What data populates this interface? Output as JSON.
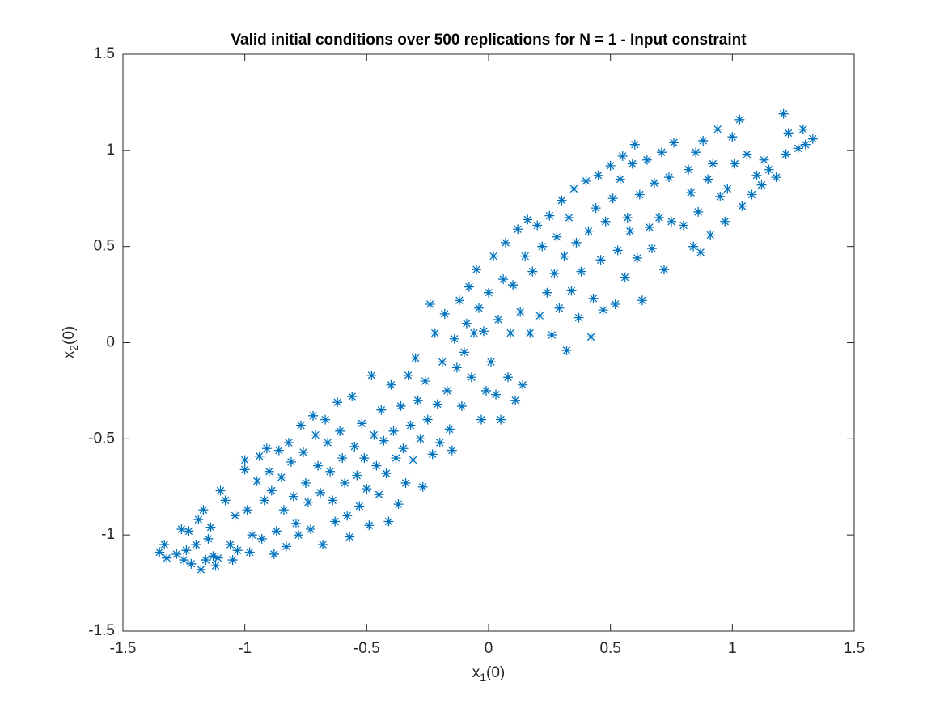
{
  "chart_data": {
    "type": "scatter",
    "title": "Valid initial conditions over 500 replications for N = 1 - Input constraint",
    "xlabel": [
      "x",
      "1",
      "(0)"
    ],
    "ylabel": [
      "x",
      "2",
      "(0)"
    ],
    "xlim": [
      -1.5,
      1.5
    ],
    "ylim": [
      -1.5,
      1.5
    ],
    "xticks": [
      -1.5,
      -1,
      -0.5,
      0,
      0.5,
      1,
      1.5
    ],
    "yticks": [
      -1.5,
      -1,
      -0.5,
      0,
      0.5,
      1,
      1.5
    ],
    "grid": false,
    "color": "#0072bd",
    "marker": "*",
    "x": [
      -1.35,
      -1.33,
      -1.32,
      -1.28,
      -1.26,
      -1.25,
      -1.24,
      -1.23,
      -1.22,
      -1.2,
      -1.19,
      -1.18,
      -1.17,
      -1.16,
      -1.15,
      -1.14,
      -1.13,
      -1.12,
      -1.11,
      -1.1,
      -1.08,
      -1.06,
      -1.05,
      -1.04,
      -1.03,
      -1.0,
      -1.0,
      -0.99,
      -0.98,
      -0.97,
      -0.95,
      -0.94,
      -0.93,
      -0.92,
      -0.91,
      -0.9,
      -0.89,
      -0.88,
      -0.87,
      -0.86,
      -0.85,
      -0.84,
      -0.83,
      -0.82,
      -0.81,
      -0.8,
      -0.79,
      -0.78,
      -0.77,
      -0.76,
      -0.75,
      -0.74,
      -0.73,
      -0.72,
      -0.71,
      -0.7,
      -0.69,
      -0.68,
      -0.67,
      -0.66,
      -0.65,
      -0.64,
      -0.63,
      -0.62,
      -0.61,
      -0.6,
      -0.59,
      -0.58,
      -0.57,
      -0.56,
      -0.55,
      -0.54,
      -0.53,
      -0.52,
      -0.51,
      -0.5,
      -0.49,
      -0.48,
      -0.47,
      -0.46,
      -0.45,
      -0.44,
      -0.43,
      -0.42,
      -0.41,
      -0.4,
      -0.39,
      -0.38,
      -0.37,
      -0.36,
      -0.35,
      -0.34,
      -0.33,
      -0.32,
      -0.31,
      -0.3,
      -0.29,
      -0.28,
      -0.27,
      -0.26,
      -0.25,
      -0.24,
      -0.23,
      -0.22,
      -0.21,
      -0.2,
      -0.19,
      -0.18,
      -0.17,
      -0.16,
      -0.15,
      -0.14,
      -0.13,
      -0.12,
      -0.11,
      -0.1,
      -0.09,
      -0.08,
      -0.07,
      -0.06,
      -0.05,
      -0.04,
      -0.03,
      -0.02,
      -0.01,
      0.0,
      0.01,
      0.02,
      0.03,
      0.04,
      0.05,
      0.06,
      0.07,
      0.08,
      0.09,
      0.1,
      0.11,
      0.12,
      0.13,
      0.14,
      0.15,
      0.16,
      0.17,
      0.18,
      0.2,
      0.21,
      0.22,
      0.24,
      0.25,
      0.26,
      0.27,
      0.28,
      0.29,
      0.3,
      0.31,
      0.32,
      0.33,
      0.34,
      0.35,
      0.36,
      0.37,
      0.38,
      0.4,
      0.41,
      0.42,
      0.43,
      0.44,
      0.45,
      0.46,
      0.47,
      0.48,
      0.5,
      0.51,
      0.52,
      0.53,
      0.54,
      0.55,
      0.56,
      0.57,
      0.58,
      0.59,
      0.6,
      0.61,
      0.62,
      0.63,
      0.65,
      0.66,
      0.67,
      0.68,
      0.7,
      0.71,
      0.72,
      0.74,
      0.75,
      0.76,
      0.8,
      0.82,
      0.83,
      0.84,
      0.85,
      0.86,
      0.87,
      0.88,
      0.9,
      0.91,
      0.92,
      0.94,
      0.95,
      0.97,
      0.98,
      1.0,
      1.01,
      1.03,
      1.04,
      1.06,
      1.08,
      1.1,
      1.12,
      1.13,
      1.15,
      1.18,
      1.21,
      1.22,
      1.23,
      1.27,
      1.29,
      1.3,
      1.33
    ],
    "values": [
      -1.09,
      -1.05,
      -1.12,
      -1.1,
      -0.97,
      -1.13,
      -1.08,
      -0.98,
      -1.15,
      -1.05,
      -0.92,
      -1.18,
      -0.87,
      -1.13,
      -1.02,
      -0.96,
      -1.11,
      -1.16,
      -1.12,
      -0.77,
      -0.82,
      -1.05,
      -1.13,
      -0.9,
      -1.08,
      -0.61,
      -0.66,
      -0.87,
      -1.09,
      -1.0,
      -0.72,
      -0.59,
      -1.02,
      -0.82,
      -0.55,
      -0.67,
      -0.77,
      -1.1,
      -0.98,
      -0.56,
      -0.7,
      -0.87,
      -1.06,
      -0.52,
      -0.62,
      -0.8,
      -0.94,
      -1.0,
      -0.43,
      -0.57,
      -0.73,
      -0.83,
      -0.97,
      -0.38,
      -0.48,
      -0.64,
      -0.78,
      -1.05,
      -0.4,
      -0.52,
      -0.67,
      -0.82,
      -0.93,
      -0.31,
      -0.46,
      -0.6,
      -0.73,
      -0.9,
      -1.01,
      -0.28,
      -0.54,
      -0.69,
      -0.85,
      -0.42,
      -0.6,
      -0.76,
      -0.95,
      -0.17,
      -0.48,
      -0.64,
      -0.79,
      -0.35,
      -0.51,
      -0.68,
      -0.93,
      -0.22,
      -0.46,
      -0.6,
      -0.84,
      -0.33,
      -0.55,
      -0.73,
      -0.17,
      -0.43,
      -0.61,
      -0.08,
      -0.3,
      -0.5,
      -0.75,
      -0.2,
      -0.4,
      0.2,
      -0.58,
      0.05,
      -0.32,
      -0.52,
      -0.1,
      0.15,
      -0.25,
      -0.45,
      -0.56,
      0.02,
      -0.13,
      0.22,
      -0.33,
      -0.05,
      0.1,
      0.29,
      -0.18,
      0.05,
      0.38,
      0.18,
      -0.4,
      0.06,
      -0.25,
      0.26,
      -0.1,
      0.45,
      -0.27,
      0.12,
      -0.4,
      0.33,
      0.52,
      -0.18,
      0.05,
      0.3,
      -0.3,
      0.59,
      0.16,
      -0.22,
      0.45,
      0.64,
      0.05,
      0.37,
      0.61,
      0.14,
      0.5,
      0.26,
      0.66,
      0.04,
      0.36,
      0.55,
      0.18,
      0.74,
      0.45,
      -0.04,
      0.65,
      0.27,
      0.8,
      0.52,
      0.13,
      0.37,
      0.84,
      0.58,
      0.03,
      0.23,
      0.7,
      0.87,
      0.43,
      0.17,
      0.63,
      0.92,
      0.75,
      0.2,
      0.48,
      0.85,
      0.97,
      0.34,
      0.65,
      0.58,
      0.93,
      1.03,
      0.44,
      0.77,
      0.22,
      0.95,
      0.6,
      0.49,
      0.83,
      0.65,
      0.99,
      0.38,
      0.86,
      0.63,
      1.04,
      0.61,
      0.9,
      0.78,
      0.5,
      0.99,
      0.68,
      0.47,
      1.05,
      0.85,
      0.56,
      0.93,
      1.11,
      0.76,
      0.63,
      0.8,
      1.07,
      0.93,
      1.16,
      0.71,
      0.98,
      0.77,
      0.87,
      0.82,
      0.95,
      0.9,
      0.86,
      1.19,
      0.98,
      1.09,
      1.01,
      1.11,
      1.03,
      1.06
    ]
  }
}
